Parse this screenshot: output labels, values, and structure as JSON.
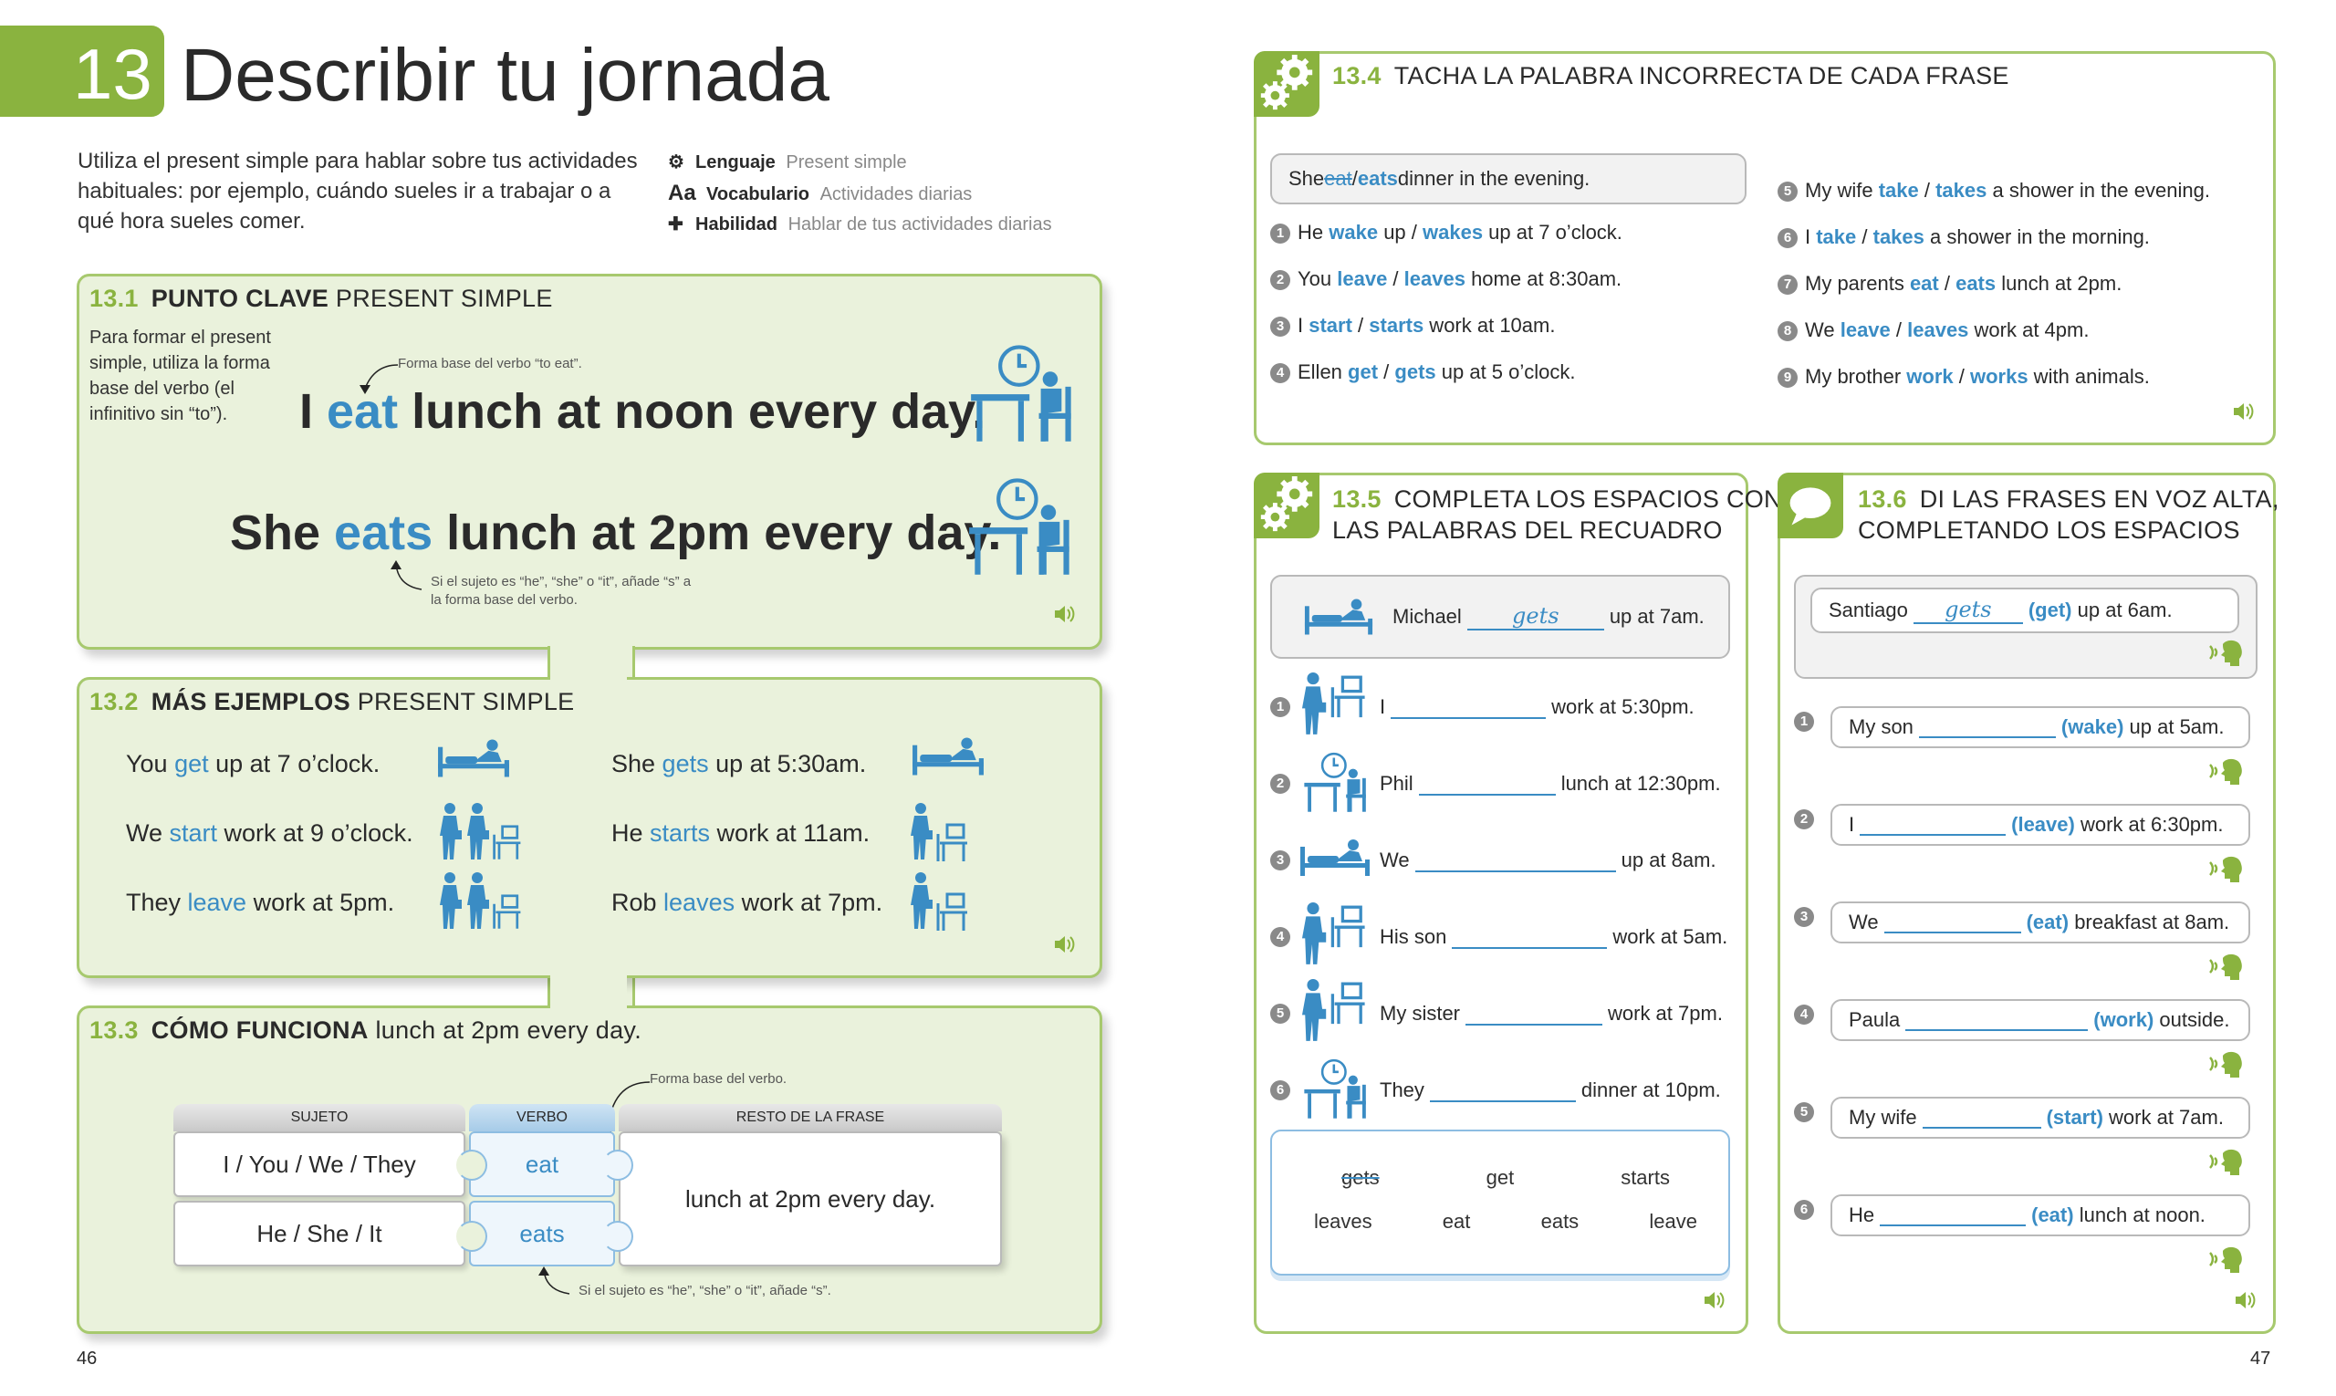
{
  "header": {
    "chapter_number": "13",
    "title": "Describir tu jornada",
    "intro": "Utiliza el present simple para hablar sobre tus actividades habituales: por ejemplo, cuándo sueles ir a trabajar o a qué hora sueles comer.",
    "meta": [
      {
        "icon": "gears-icon",
        "label": "Lenguaje",
        "value": "Present simple"
      },
      {
        "icon": "aa-icon",
        "label": "Vocabulario",
        "value": "Actividades diarias"
      },
      {
        "icon": "puzzle-icon",
        "label": "Habilidad",
        "value": "Hablar de tus actividades diarias"
      }
    ]
  },
  "s131": {
    "num": "13.1",
    "strong": "PUNTO CLAVE",
    "rest": "PRESENT SIMPLE",
    "note": "Para formar el present simple, utiliza la forma base del verbo (el infinitivo sin “to”).",
    "callout1": "Forma base del verbo “to eat”.",
    "s1_a": "I ",
    "s1_b": "eat",
    "s1_c": " lunch at noon every day.",
    "s2_a": "She ",
    "s2_b": "eats",
    "s2_c": " lunch at 2pm every day.",
    "callout2": "Si el sujeto es “he”, “she” o “it”, añade “s” a la forma base del verbo."
  },
  "s132": {
    "num": "13.2",
    "strong": "MÁS EJEMPLOS",
    "rest": "PRESENT SIMPLE",
    "items": [
      {
        "a": "You ",
        "v": "get",
        "c": " up at 7 o’clock."
      },
      {
        "a": "She ",
        "v": "gets",
        "c": " up at 5:30am."
      },
      {
        "a": "We ",
        "v": "start",
        "c": " work at 9 o’clock."
      },
      {
        "a": "He ",
        "v": "starts",
        "c": " work at 11am."
      },
      {
        "a": "They ",
        "v": "leave",
        "c": " work at 5pm."
      },
      {
        "a": "Rob ",
        "v": "leaves",
        "c": " work at 7pm."
      }
    ]
  },
  "s133": {
    "num": "13.3",
    "strong": "CÓMO FUNCIONA",
    "rest": "lunch at 2pm every day.",
    "callout_top": "Forma base del verbo.",
    "h_subject": "SUJETO",
    "h_verb": "VERBO",
    "h_rest": "RESTO DE LA FRASE",
    "row1_subject": "I / You / We / They",
    "row1_verb": "eat",
    "row2_subject": "He / She / It",
    "row2_verb": "eats",
    "callout_bottom": "Si el sujeto es “he”, “she” o “it”, añade “s”."
  },
  "s134": {
    "num": "13.4",
    "title": "TACHA LA PALABRA INCORRECTA DE CADA FRASE",
    "example": {
      "a": "She ",
      "x": "eat",
      "sep": " / ",
      "b": "eats",
      "c": " dinner in the evening."
    },
    "items": [
      {
        "n": "1",
        "a": "He ",
        "o1": "wake",
        "m": " up / ",
        "o2": "wakes",
        "c": " up at 7 o’clock."
      },
      {
        "n": "2",
        "a": "You ",
        "o1": "leave",
        "m": " / ",
        "o2": "leaves",
        "c": " home at 8:30am."
      },
      {
        "n": "3",
        "a": "I ",
        "o1": "start",
        "m": " / ",
        "o2": "starts",
        "c": " work at 10am."
      },
      {
        "n": "4",
        "a": "Ellen ",
        "o1": "get",
        "m": " / ",
        "o2": "gets",
        "c": " up at 5 o’clock."
      },
      {
        "n": "5",
        "a": "My wife ",
        "o1": "take",
        "m": " / ",
        "o2": "takes",
        "c": " a shower in the evening."
      },
      {
        "n": "6",
        "a": "I ",
        "o1": "take",
        "m": " / ",
        "o2": "takes",
        "c": " a shower in the morning."
      },
      {
        "n": "7",
        "a": "My parents ",
        "o1": "eat",
        "m": " / ",
        "o2": "eats",
        "c": " lunch at 2pm."
      },
      {
        "n": "8",
        "a": "We ",
        "o1": "leave",
        "m": " / ",
        "o2": "leaves",
        "c": " work at 4pm."
      },
      {
        "n": "9",
        "a": "My brother ",
        "o1": "work",
        "m": " / ",
        "o2": "works",
        "c": " with animals."
      }
    ]
  },
  "s135": {
    "num": "13.5",
    "title1": "COMPLETA LOS ESPACIOS CON",
    "title2": "LAS PALABRAS DEL RECUADRO",
    "example": {
      "a": "Michael",
      "ans": "gets",
      "c": "up at 7am."
    },
    "items": [
      {
        "n": "1",
        "a": "I",
        "c": "work at 5:30pm."
      },
      {
        "n": "2",
        "a": "Phil",
        "c": "lunch at 12:30pm."
      },
      {
        "n": "3",
        "a": "We",
        "c": "up at 8am."
      },
      {
        "n": "4",
        "a": "His son",
        "c": "work at 5am."
      },
      {
        "n": "5",
        "a": "My sister",
        "c": "work at 7pm."
      },
      {
        "n": "6",
        "a": "They",
        "c": "dinner at 10pm."
      }
    ],
    "box_row1": [
      "gets",
      "get",
      "starts"
    ],
    "box_row2": [
      "leaves",
      "eat",
      "eats",
      "leave"
    ]
  },
  "s136": {
    "num": "13.6",
    "title1": "DI LAS FRASES EN VOZ ALTA,",
    "title2": "COMPLETANDO LOS ESPACIOS",
    "example": {
      "a": "Santiago",
      "ans": "gets",
      "hint": "(get)",
      "c": "up at 6am."
    },
    "items": [
      {
        "n": "1",
        "a": "My son",
        "hint": "(wake)",
        "c": "up at 5am."
      },
      {
        "n": "2",
        "a": "I",
        "hint": "(leave)",
        "c": "work at 6:30pm."
      },
      {
        "n": "3",
        "a": "We",
        "hint": "(eat)",
        "c": "breakfast at 8am."
      },
      {
        "n": "4",
        "a": "Paula",
        "hint": "(work)",
        "c": "outside."
      },
      {
        "n": "5",
        "a": "My wife",
        "hint": "(start)",
        "c": "work at 7am."
      },
      {
        "n": "6",
        "a": "He",
        "hint": "(eat)",
        "c": "lunch at noon."
      }
    ]
  },
  "footer": {
    "page_left": "46",
    "page_right": "47"
  },
  "colors": {
    "green": "#8ab33f",
    "blue": "#3a8cc4",
    "panel_fill": "#eaf2dc"
  }
}
